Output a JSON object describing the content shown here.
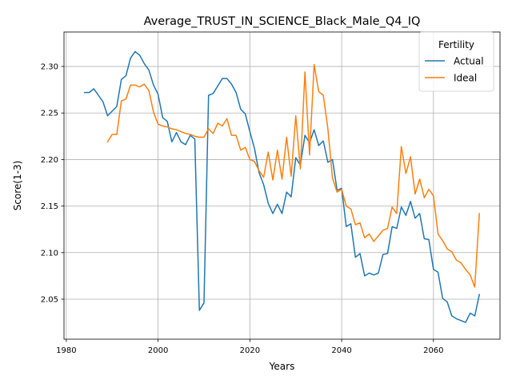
{
  "chart_data": {
    "type": "line",
    "title": "Average_TRUST_IN_SCIENCE_Black_Male_Q4_IQ",
    "xlabel": "Years",
    "ylabel": "Score(1-3)",
    "xlim": [
      1979.5,
      2074.5
    ],
    "ylim": [
      2.007,
      2.337
    ],
    "x_ticks": [
      1980,
      2000,
      2020,
      2040,
      2060
    ],
    "y_ticks": [
      2.05,
      2.1,
      2.15,
      2.2,
      2.25,
      2.3
    ],
    "x_tick_labels": [
      "1980",
      "2000",
      "2020",
      "2040",
      "2060"
    ],
    "y_tick_labels": [
      "2.05",
      "2.10",
      "2.15",
      "2.20",
      "2.25",
      "2.30"
    ],
    "grid": true,
    "legend": {
      "title": "Fertility",
      "placement": "top-right"
    },
    "series": [
      {
        "name": "Actual",
        "color": "#1f77b4",
        "x": [
          1984,
          1985,
          1986,
          1987,
          1988,
          1989,
          1990,
          1991,
          1992,
          1993,
          1994,
          1995,
          1996,
          1997,
          1998,
          1999,
          2000,
          2001,
          2002,
          2003,
          2004,
          2005,
          2006,
          2007,
          2008,
          2009,
          2010,
          2011,
          2012,
          2013,
          2014,
          2015,
          2016,
          2017,
          2018,
          2019,
          2020,
          2021,
          2022,
          2023,
          2024,
          2025,
          2026,
          2027,
          2028,
          2029,
          2030,
          2031,
          2032,
          2033,
          2034,
          2035,
          2036,
          2037,
          2038,
          2039,
          2040,
          2041,
          2042,
          2043,
          2044,
          2045,
          2046,
          2047,
          2048,
          2049,
          2050,
          2051,
          2052,
          2053,
          2054,
          2055,
          2056,
          2057,
          2058,
          2059,
          2060,
          2061,
          2062,
          2063,
          2064,
          2065,
          2066,
          2067,
          2068,
          2069,
          2070
        ],
        "values": [
          2.272,
          2.272,
          2.276,
          2.269,
          2.262,
          2.247,
          2.252,
          2.257,
          2.286,
          2.29,
          2.309,
          2.316,
          2.312,
          2.303,
          2.296,
          2.28,
          2.27,
          2.245,
          2.241,
          2.219,
          2.229,
          2.219,
          2.216,
          2.226,
          2.222,
          2.038,
          2.046,
          2.269,
          2.271,
          2.279,
          2.287,
          2.287,
          2.281,
          2.272,
          2.254,
          2.249,
          2.23,
          2.212,
          2.186,
          2.173,
          2.153,
          2.142,
          2.152,
          2.142,
          2.165,
          2.16,
          2.202,
          2.194,
          2.226,
          2.218,
          2.232,
          2.215,
          2.22,
          2.197,
          2.2,
          2.167,
          2.169,
          2.128,
          2.131,
          2.095,
          2.099,
          2.075,
          2.078,
          2.076,
          2.078,
          2.098,
          2.099,
          2.128,
          2.126,
          2.149,
          2.14,
          2.155,
          2.137,
          2.142,
          2.115,
          2.114,
          2.082,
          2.079,
          2.051,
          2.047,
          2.032,
          2.029,
          2.027,
          2.025,
          2.035,
          2.032,
          2.055
        ]
      },
      {
        "name": "Ideal",
        "color": "#ff7f0e",
        "x": [
          1989,
          1990,
          1991,
          1992,
          1993,
          1994,
          1995,
          1996,
          1997,
          1998,
          1999,
          2000,
          2001,
          2002,
          2003,
          2004,
          2005,
          2006,
          2007,
          2008,
          2009,
          2010,
          2011,
          2012,
          2013,
          2014,
          2015,
          2016,
          2017,
          2018,
          2019,
          2020,
          2021,
          2022,
          2023,
          2024,
          2025,
          2026,
          2027,
          2028,
          2029,
          2030,
          2031,
          2032,
          2033,
          2034,
          2035,
          2036,
          2037,
          2038,
          2039,
          2040,
          2041,
          2042,
          2043,
          2044,
          2045,
          2046,
          2047,
          2048,
          2049,
          2050,
          2051,
          2052,
          2053,
          2054,
          2055,
          2056,
          2057,
          2058,
          2059,
          2060,
          2061,
          2062,
          2063,
          2064,
          2065,
          2066,
          2067,
          2068,
          2069,
          2070
        ],
        "values": [
          2.219,
          2.227,
          2.227,
          2.263,
          2.265,
          2.28,
          2.28,
          2.278,
          2.281,
          2.274,
          2.251,
          2.238,
          2.236,
          2.235,
          2.233,
          2.232,
          2.23,
          2.228,
          2.227,
          2.225,
          2.224,
          2.224,
          2.233,
          2.228,
          2.239,
          2.236,
          2.244,
          2.226,
          2.226,
          2.21,
          2.213,
          2.2,
          2.198,
          2.188,
          2.181,
          2.208,
          2.178,
          2.21,
          2.179,
          2.224,
          2.182,
          2.247,
          2.19,
          2.294,
          2.205,
          2.302,
          2.273,
          2.269,
          2.233,
          2.18,
          2.165,
          2.168,
          2.15,
          2.147,
          2.13,
          2.132,
          2.116,
          2.12,
          2.112,
          2.118,
          2.124,
          2.126,
          2.149,
          2.142,
          2.214,
          2.185,
          2.203,
          2.163,
          2.179,
          2.159,
          2.168,
          2.161,
          2.12,
          2.113,
          2.104,
          2.101,
          2.092,
          2.089,
          2.082,
          2.076,
          2.063,
          2.142
        ]
      }
    ]
  }
}
